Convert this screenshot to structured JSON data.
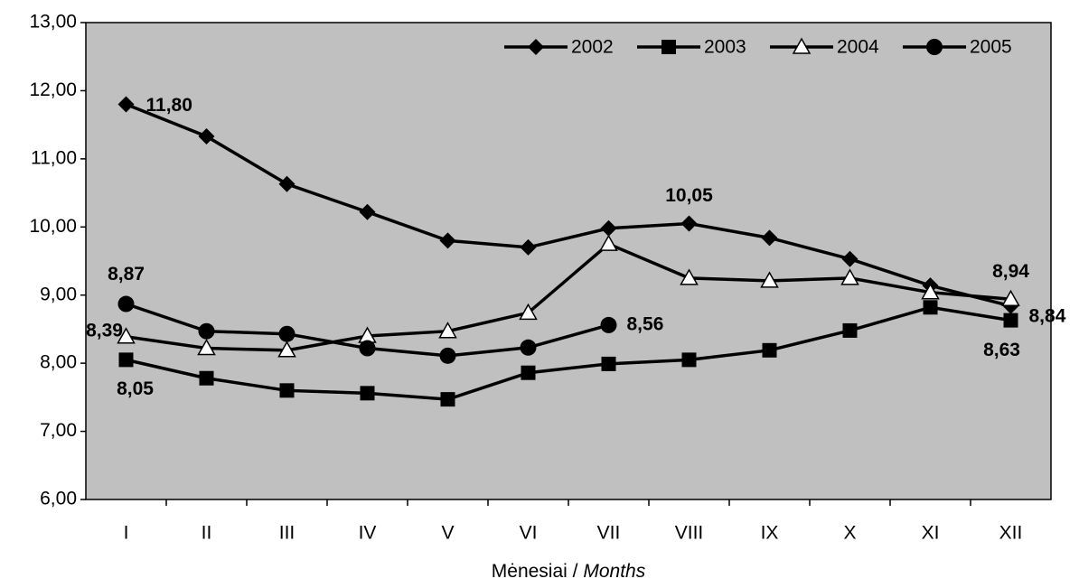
{
  "chart_data": {
    "type": "line",
    "categories": [
      "I",
      "II",
      "III",
      "IV",
      "V",
      "VI",
      "VII",
      "VIII",
      "IX",
      "X",
      "XI",
      "XII"
    ],
    "x_label": [
      "Mėnesiai /",
      "Months"
    ],
    "ylim": [
      6,
      13
    ],
    "yticks": [
      {
        "value": 6,
        "label": "6,00"
      },
      {
        "value": 7,
        "label": "7,00"
      },
      {
        "value": 8,
        "label": "8,00"
      },
      {
        "value": 9,
        "label": "9,00"
      },
      {
        "value": 10,
        "label": "10,00"
      },
      {
        "value": 11,
        "label": "11,00"
      },
      {
        "value": 12,
        "label": "12,00"
      },
      {
        "value": 13,
        "label": "13,00"
      }
    ],
    "plot_background": "#c0c0c0",
    "legend": "top-right",
    "series": [
      {
        "name": "2002",
        "color": "#000000",
        "marker": "diamond",
        "values": [
          11.8,
          11.33,
          10.63,
          10.22,
          9.8,
          9.7,
          9.98,
          10.05,
          9.84,
          9.53,
          9.14,
          8.84
        ],
        "value_labels": [
          "11,80",
          null,
          null,
          null,
          null,
          null,
          null,
          "10,05",
          null,
          null,
          null,
          "8,84"
        ]
      },
      {
        "name": "2003",
        "color": "#000000",
        "marker": "square",
        "values": [
          8.05,
          7.78,
          7.6,
          7.56,
          7.47,
          7.86,
          7.99,
          8.05,
          8.19,
          8.48,
          8.82,
          8.63
        ],
        "value_labels": [
          "8,05",
          null,
          null,
          null,
          null,
          null,
          null,
          null,
          null,
          null,
          null,
          "8,63"
        ]
      },
      {
        "name": "2004",
        "color": "#000000",
        "marker": "triangle",
        "values": [
          8.39,
          8.22,
          8.19,
          8.4,
          8.47,
          8.74,
          9.75,
          9.25,
          9.21,
          9.25,
          9.04,
          8.94
        ],
        "value_labels": [
          "8,39",
          null,
          null,
          null,
          null,
          null,
          null,
          null,
          null,
          null,
          null,
          "8,94"
        ]
      },
      {
        "name": "2005",
        "color": "#000000",
        "marker": "circle",
        "values": [
          8.87,
          8.47,
          8.43,
          8.22,
          8.11,
          8.23,
          8.56,
          null,
          null,
          null,
          null,
          null
        ],
        "value_labels": [
          "8,87",
          null,
          null,
          null,
          null,
          null,
          "8,56",
          null,
          null,
          null,
          null,
          null
        ]
      }
    ]
  }
}
